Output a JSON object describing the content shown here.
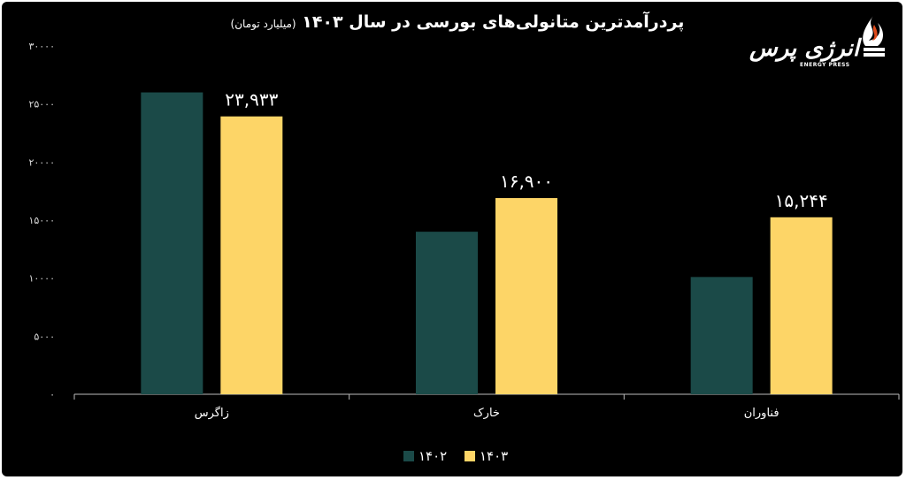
{
  "title": "پردرآمدترین متانولی‌های بورسی در سال ۱۴۰۳",
  "subtitle": "(میلیارد تومان)",
  "logo": {
    "text": "انرژی پرس",
    "tagline": "ENERGY PRESS"
  },
  "colors": {
    "series_1402": "#1b4a48",
    "series_1403": "#fdd567",
    "background": "#000000",
    "axis": "#bbbbbb"
  },
  "chart_data": {
    "type": "bar",
    "categories": [
      "زاگرس",
      "خارک",
      "فناوران"
    ],
    "series": [
      {
        "name": "۱۴۰۲",
        "values": [
          26000,
          14000,
          10100
        ],
        "labels": [
          "",
          "",
          ""
        ]
      },
      {
        "name": "۱۴۰۳",
        "values": [
          23933,
          16900,
          15244
        ],
        "labels": [
          "۲۳,۹۳۳",
          "۱۶,۹۰۰",
          "۱۵,۲۴۴"
        ]
      }
    ],
    "yticks": [
      "۰",
      "۵۰۰۰",
      "۱۰۰۰۰",
      "۱۵۰۰۰",
      "۲۰۰۰۰",
      "۲۵۰۰۰",
      "۳۰۰۰۰"
    ],
    "ylim": [
      0,
      30000
    ],
    "legend": "bottom-center",
    "grid": false
  }
}
